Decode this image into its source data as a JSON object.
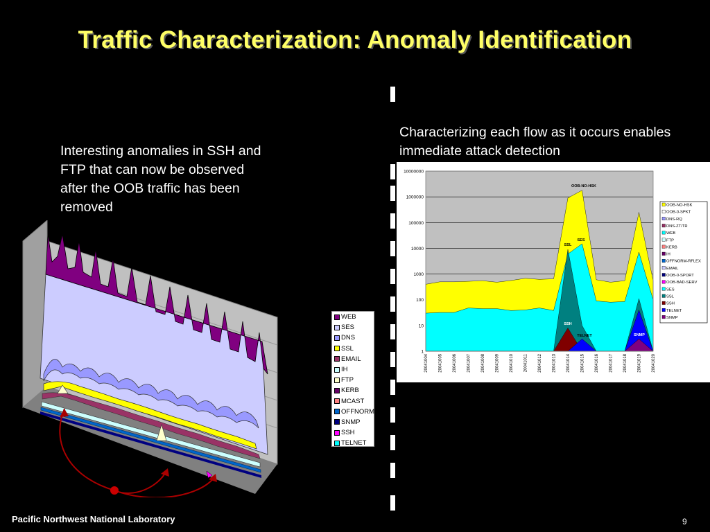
{
  "slide": {
    "title": "Traffic Characterization:  Anomaly Identification",
    "left_text": "Interesting anomalies in SSH and FTP that can now be observed after the OOB traffic has been removed",
    "right_text": "Characterizing each flow as it occurs enables immediate attack detection",
    "footer": "Pacific Northwest National Laboratory",
    "page_number": "9"
  },
  "left_chart_legend": [
    {
      "name": "WEB",
      "color": "#800080"
    },
    {
      "name": "SES",
      "color": "#ccccff"
    },
    {
      "name": "DNS",
      "color": "#9999ff"
    },
    {
      "name": "SSL",
      "color": "#ffff00"
    },
    {
      "name": "EMAIL",
      "color": "#993366"
    },
    {
      "name": "IH",
      "color": "#ccffff"
    },
    {
      "name": "FTP",
      "color": "#ffffcc"
    },
    {
      "name": "KERB",
      "color": "#660066"
    },
    {
      "name": "MCAST",
      "color": "#ff8080"
    },
    {
      "name": "OFFNORM",
      "color": "#0066cc"
    },
    {
      "name": "SNMP",
      "color": "#000080"
    },
    {
      "name": "SSH",
      "color": "#ff00ff"
    },
    {
      "name": "TELNET",
      "color": "#00ffff"
    }
  ],
  "right_chart_legend": [
    {
      "name": "OOB-NO-HSK",
      "color": "#ffff00"
    },
    {
      "name": "OOB-0-SPKT",
      "color": "#ffffff"
    },
    {
      "name": "DNS-RQ",
      "color": "#9999ff"
    },
    {
      "name": "DNS-ZT/TR",
      "color": "#993366"
    },
    {
      "name": "WEB",
      "color": "#00ffff"
    },
    {
      "name": "FTP",
      "color": "#ccffff"
    },
    {
      "name": "KERB",
      "color": "#ff8080"
    },
    {
      "name": "IH",
      "color": "#660066"
    },
    {
      "name": "OFFNORM-RFLEX",
      "color": "#0066cc"
    },
    {
      "name": "EMAIL",
      "color": "#ccccff"
    },
    {
      "name": "OOB-0-SPORT",
      "color": "#000080"
    },
    {
      "name": "OOB-BAD-SERV",
      "color": "#ff00ff"
    },
    {
      "name": "SES",
      "color": "#00ffff"
    },
    {
      "name": "SSL",
      "color": "#008080"
    },
    {
      "name": "SSH",
      "color": "#800000"
    },
    {
      "name": "TELNET",
      "color": "#0000ff"
    },
    {
      "name": "SNMP",
      "color": "#800080"
    }
  ],
  "chart_data": {
    "type": "area",
    "scale": "log",
    "ylim": [
      1,
      10000000
    ],
    "y_ticks": [
      "10000000",
      "1000000",
      "100000",
      "10000",
      "1000",
      "100",
      "10",
      "1"
    ],
    "x": [
      "20041004",
      "20041005",
      "20041006",
      "20041007",
      "20041008",
      "20041009",
      "20041010",
      "20041011",
      "20041012",
      "20041013",
      "20041014",
      "20041015",
      "20041016",
      "20041017",
      "20041018",
      "20041019",
      "20041020"
    ],
    "series": [
      {
        "name": "OOB-NO-HSK",
        "values": [
          400,
          500,
          500,
          520,
          550,
          480,
          560,
          680,
          620,
          650,
          900000,
          1800000,
          600,
          480,
          550,
          250000,
          550
        ]
      },
      {
        "name": "SES",
        "values": [
          30,
          32,
          32,
          48,
          45,
          45,
          38,
          40,
          48,
          38,
          6000,
          15000,
          90,
          80,
          85,
          7000,
          100
        ]
      },
      {
        "name": "SSL",
        "values": [
          1,
          1,
          1,
          1,
          1,
          1,
          1,
          1,
          1,
          1,
          9000,
          10,
          1,
          1,
          1,
          110,
          1
        ]
      },
      {
        "name": "SSH",
        "values": [
          1,
          1,
          1,
          1,
          1,
          1,
          1,
          1,
          1,
          1,
          8,
          1,
          1,
          1,
          1,
          1,
          1
        ]
      },
      {
        "name": "TELNET",
        "values": [
          1,
          1,
          1,
          1,
          1,
          1,
          1,
          1,
          1,
          1,
          1,
          3,
          1,
          1,
          1,
          40,
          1
        ]
      },
      {
        "name": "SNMP",
        "values": [
          1,
          1,
          1,
          1,
          1,
          1,
          1,
          1,
          1,
          1,
          1,
          1,
          1,
          1,
          1,
          3,
          1
        ]
      }
    ],
    "annotations": [
      "OOB-NO-HSK",
      "SES",
      "SSL",
      "SSH",
      "TELNET",
      "SNMP"
    ]
  }
}
